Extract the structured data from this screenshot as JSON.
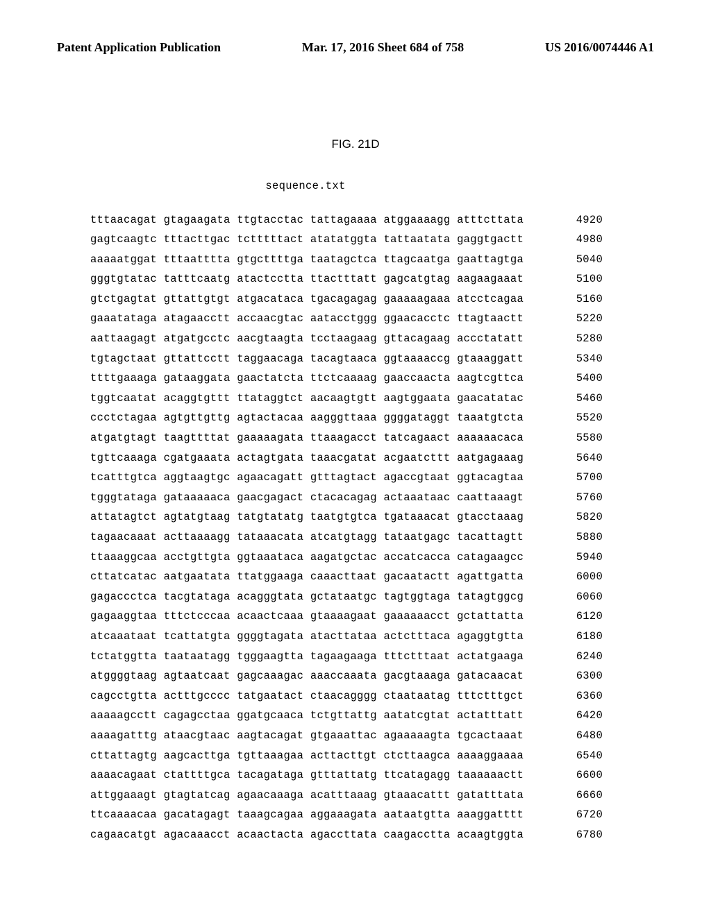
{
  "header": {
    "left": "Patent Application Publication",
    "center": "Mar. 17, 2016  Sheet 684 of 758",
    "right": "US 2016/0074446 A1"
  },
  "figure_label": "FIG. 21D",
  "sequence_title": "sequence.txt",
  "sequence": {
    "font_family": "Courier New",
    "font_size_pt": 11,
    "background_color": "#ffffff",
    "text_color": "#000000",
    "rows": [
      {
        "groups": [
          "tttaacagat",
          "gtagaagata",
          "ttgtacctac",
          "tattagaaaa",
          "atggaaaagg",
          "atttcttata"
        ],
        "num": 4920
      },
      {
        "groups": [
          "gagtcaagtc",
          "tttacttgac",
          "tctttttact",
          "atatatggta",
          "tattaatata",
          "gaggtgactt"
        ],
        "num": 4980
      },
      {
        "groups": [
          "aaaaatggat",
          "tttaatttta",
          "gtgcttttga",
          "taatagctca",
          "ttagcaatga",
          "gaattagtga"
        ],
        "num": 5040
      },
      {
        "groups": [
          "gggtgtatac",
          "tatttcaatg",
          "atactcctta",
          "ttactttatt",
          "gagcatgtag",
          "aagaagaaat"
        ],
        "num": 5100
      },
      {
        "groups": [
          "gtctgagtat",
          "gttattgtgt",
          "atgacataca",
          "tgacagagag",
          "gaaaaagaaa",
          "atcctcagaa"
        ],
        "num": 5160
      },
      {
        "groups": [
          "gaaatataga",
          "atagaacctt",
          "accaacgtac",
          "aatacctggg",
          "ggaacacctc",
          "ttagtaactt"
        ],
        "num": 5220
      },
      {
        "groups": [
          "aattaagagt",
          "atgatgcctc",
          "aacgtaagta",
          "tcctaagaag",
          "gttacagaag",
          "accctatatt"
        ],
        "num": 5280
      },
      {
        "groups": [
          "tgtagctaat",
          "gttattcctt",
          "taggaacaga",
          "tacagtaaca",
          "ggtaaaaccg",
          "gtaaaggatt"
        ],
        "num": 5340
      },
      {
        "groups": [
          "ttttgaaaga",
          "gataaggata",
          "gaactatcta",
          "ttctcaaaag",
          "gaaccaacta",
          "aagtcgttca"
        ],
        "num": 5400
      },
      {
        "groups": [
          "tggtcaatat",
          "acaggtgttt",
          "ttataggtct",
          "aacaagtgtt",
          "aagtggaata",
          "gaacatatac"
        ],
        "num": 5460
      },
      {
        "groups": [
          "ccctctagaa",
          "agtgttgttg",
          "agtactacaa",
          "aagggttaaa",
          "ggggataggt",
          "taaatgtcta"
        ],
        "num": 5520
      },
      {
        "groups": [
          "atgatgtagt",
          "taagttttat",
          "gaaaaagata",
          "ttaaagacct",
          "tatcagaact",
          "aaaaaacaca"
        ],
        "num": 5580
      },
      {
        "groups": [
          "tgttcaaaga",
          "cgatgaaata",
          "actagtgata",
          "taaacgatat",
          "acgaatcttt",
          "aatgagaaag"
        ],
        "num": 5640
      },
      {
        "groups": [
          "tcatttgtca",
          "aggtaagtgc",
          "agaacagatt",
          "gtttagtact",
          "agaccgtaat",
          "ggtacagtaa"
        ],
        "num": 5700
      },
      {
        "groups": [
          "tgggtataga",
          "gataaaaaca",
          "gaacgagact",
          "ctacacagag",
          "actaaataac",
          "caattaaagt"
        ],
        "num": 5760
      },
      {
        "groups": [
          "attatagtct",
          "agtatgtaag",
          "tatgtatatg",
          "taatgtgtca",
          "tgataaacat",
          "gtacctaaag"
        ],
        "num": 5820
      },
      {
        "groups": [
          "tagaacaaat",
          "acttaaaagg",
          "tataaacata",
          "atcatgtagg",
          "tataatgagc",
          "tacattagtt"
        ],
        "num": 5880
      },
      {
        "groups": [
          "ttaaaggcaa",
          "acctgttgta",
          "ggtaaataca",
          "aagatgctac",
          "accatcacca",
          "catagaagcc"
        ],
        "num": 5940
      },
      {
        "groups": [
          "cttatcatac",
          "aatgaatata",
          "ttatggaaga",
          "caaacttaat",
          "gacaatactt",
          "agattgatta"
        ],
        "num": 6000
      },
      {
        "groups": [
          "gagaccctca",
          "tacgtataga",
          "acagggtata",
          "gctataatgc",
          "tagtggtaga",
          "tatagtggcg"
        ],
        "num": 6060
      },
      {
        "groups": [
          "gagaaggtaa",
          "tttctcccaa",
          "acaactcaaa",
          "gtaaaagaat",
          "gaaaaaacct",
          "gctattatta"
        ],
        "num": 6120
      },
      {
        "groups": [
          "atcaaataat",
          "tcattatgta",
          "ggggtagata",
          "atacttataa",
          "actctttaca",
          "agaggtgtta"
        ],
        "num": 6180
      },
      {
        "groups": [
          "tctatggtta",
          "taataatagg",
          "tgggaagtta",
          "tagaagaaga",
          "tttctttaat",
          "actatgaaga"
        ],
        "num": 6240
      },
      {
        "groups": [
          "atggggtaag",
          "agtaatcaat",
          "gagcaaagac",
          "aaaccaaata",
          "gacgtaaaga",
          "gatacaacat"
        ],
        "num": 6300
      },
      {
        "groups": [
          "cagcctgtta",
          "actttgcccc",
          "tatgaatact",
          "ctaacagggg",
          "ctaataatag",
          "tttctttgct"
        ],
        "num": 6360
      },
      {
        "groups": [
          "aaaaagcctt",
          "cagagcctaa",
          "ggatgcaaca",
          "tctgttattg",
          "aatatcgtat",
          "actatttatt"
        ],
        "num": 6420
      },
      {
        "groups": [
          "aaaagatttg",
          "ataacgtaac",
          "aagtacagat",
          "gtgaaattac",
          "agaaaaagta",
          "tgcactaaat"
        ],
        "num": 6480
      },
      {
        "groups": [
          "cttattagtg",
          "aagcacttga",
          "tgttaaagaa",
          "acttacttgt",
          "ctcttaagca",
          "aaaaggaaaa"
        ],
        "num": 6540
      },
      {
        "groups": [
          "aaaacagaat",
          "ctattttgca",
          "tacagataga",
          "gtttattatg",
          "ttcatagagg",
          "taaaaaactt"
        ],
        "num": 6600
      },
      {
        "groups": [
          "attggaaagt",
          "gtagtatcag",
          "agaacaaaga",
          "acatttaaag",
          "gtaaacattt",
          "gatatttata"
        ],
        "num": 6660
      },
      {
        "groups": [
          "ttcaaaacaa",
          "gacatagagt",
          "taaagcagaa",
          "aggaaagata",
          "aataatgtta",
          "aaaggatttt"
        ],
        "num": 6720
      },
      {
        "groups": [
          "cagaacatgt",
          "agacaaacct",
          "acaactacta",
          "agaccttata",
          "caagacctta",
          "acaagtggta"
        ],
        "num": 6780
      }
    ]
  }
}
